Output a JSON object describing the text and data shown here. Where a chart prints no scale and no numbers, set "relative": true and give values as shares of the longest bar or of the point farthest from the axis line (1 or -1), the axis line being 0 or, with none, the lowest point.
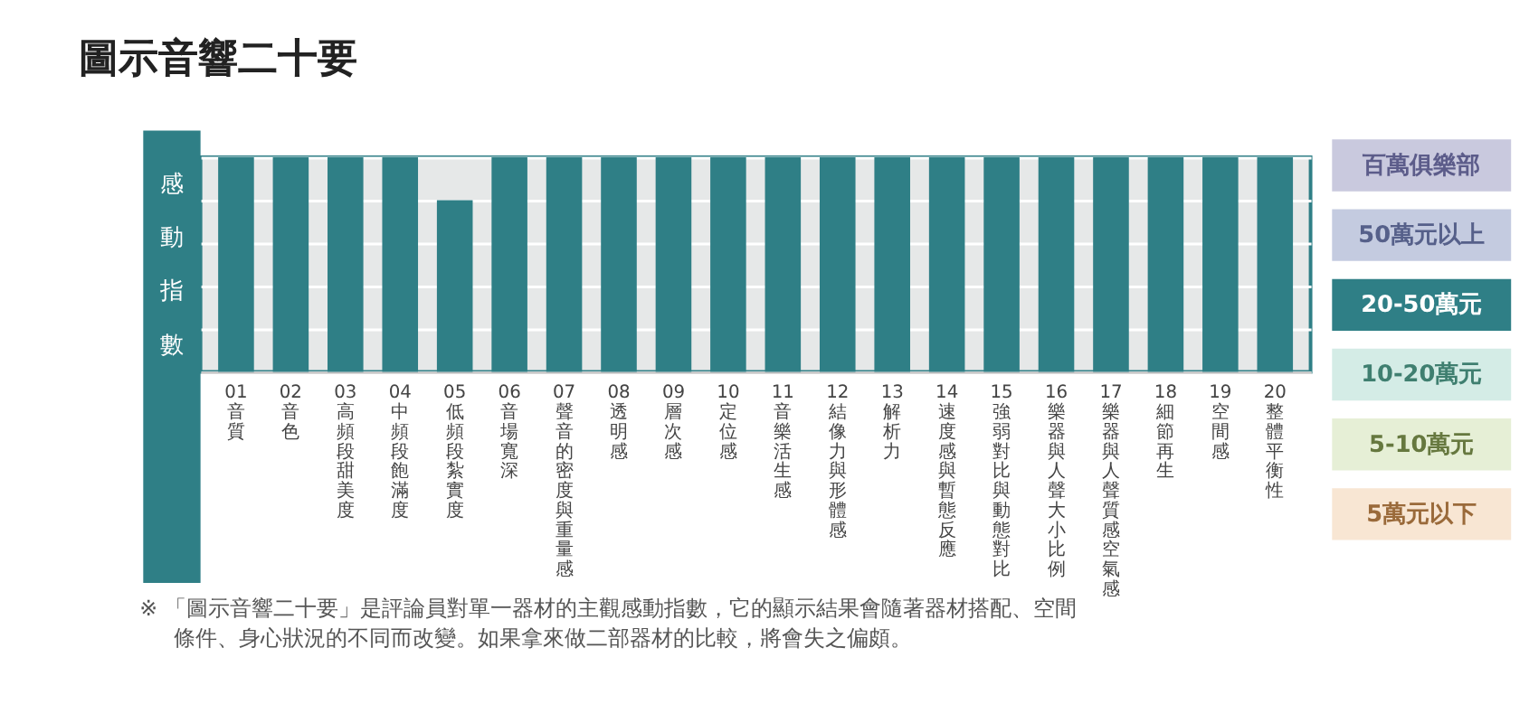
{
  "chart_data": {
    "type": "bar",
    "title": "圖示音響二十要",
    "ylabel": "感動指數",
    "relative": true,
    "grid": "y",
    "color": "#2f7f86",
    "categories": [
      "01 音質",
      "02 音色",
      "03 高頻段甜美度",
      "04 中頻段飽滿度",
      "05 低頻段紮實度",
      "06 音場寬深",
      "07 聲音的密度與重量感",
      "08 透明感",
      "09 層次感",
      "10 定位感",
      "11 音樂活生感",
      "12 結像力與形體感",
      "13 解析力",
      "14 速度感與暫態反應",
      "15 強弱對比與動態對比",
      "16 樂器與人聲大小比例",
      "17 樂器與人聲質感空氣感",
      "18 細節再生",
      "19 空間感",
      "20 整體平衡性"
    ],
    "values": [
      1,
      1,
      1,
      1,
      0.8,
      1,
      1,
      1,
      1,
      1,
      1,
      1,
      1,
      1,
      1,
      1,
      1,
      1,
      1,
      1
    ],
    "annotations": [
      "百萬俱樂部",
      "50萬元以上",
      "20-50萬元",
      "10-20萬元",
      "5-10萬元",
      "5萬元以下",
      "※ 「圖示音響二十要」是評論員對單一器材的主觀感動指數，它的顯示結果會隨著器材搭配、空間條件、身心狀況的不同而改變。如果拿來做二部器材的比較，將會失之偏頗。"
    ]
  }
}
